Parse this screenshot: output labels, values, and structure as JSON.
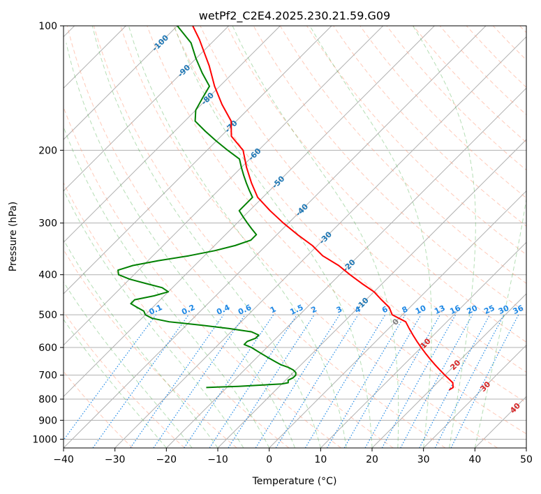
{
  "chart_data": {
    "type": "line",
    "title": "wetPf2_C2E4.2025.230.21.59.G09",
    "xlabel": "Temperature (°C)",
    "ylabel": "Pressure (hPa)",
    "xlim": [
      -40,
      50
    ],
    "ylim_pressure": [
      1050,
      100
    ],
    "y_scale": "log",
    "grid": true,
    "x_ticks": [
      -40,
      -30,
      -20,
      -10,
      0,
      10,
      20,
      30,
      40,
      50
    ],
    "x_tick_labels": [
      "−40",
      "−30",
      "−20",
      "−10",
      "0",
      "10",
      "20",
      "30",
      "40",
      "50"
    ],
    "y_ticks": [
      100,
      200,
      300,
      400,
      500,
      600,
      700,
      800,
      900,
      1000
    ],
    "y_tick_labels": [
      "100",
      "200",
      "300",
      "400",
      "500",
      "600",
      "700",
      "800",
      "900",
      "1000"
    ],
    "series": [
      {
        "role": "temperature",
        "color": "#ff0000",
        "pressure": [
          760,
          750,
          730,
          700,
          680,
          660,
          640,
          620,
          600,
          580,
          560,
          540,
          520,
          500,
          480,
          460,
          440,
          420,
          400,
          380,
          360,
          340,
          320,
          300,
          280,
          260,
          240,
          220,
          200,
          185,
          170,
          155,
          140,
          125,
          115,
          108,
          100
        ],
        "temperature": [
          23.7,
          24.0,
          23.0,
          20.0,
          18.0,
          16.0,
          14.0,
          12.0,
          10.0,
          8.0,
          6.0,
          4.0,
          2.0,
          -2.0,
          -4.0,
          -7.0,
          -10.0,
          -14.0,
          -18.0,
          -22.0,
          -27.0,
          -31.0,
          -36.0,
          -41.0,
          -46.0,
          -51.0,
          -55.0,
          -59.0,
          -63.0,
          -68.0,
          -71.0,
          -76.0,
          -81.0,
          -86.0,
          -90.0,
          -93.0,
          -97.0
        ]
      },
      {
        "role": "dewpoint",
        "color": "#008000",
        "pressure": [
          750,
          748,
          745,
          740,
          735,
          730,
          720,
          710,
          700,
          690,
          680,
          670,
          660,
          650,
          640,
          630,
          620,
          610,
          600,
          590,
          580,
          570,
          560,
          550,
          540,
          530,
          520,
          510,
          500,
          490,
          480,
          470,
          460,
          450,
          440,
          430,
          420,
          410,
          400,
          390,
          380,
          370,
          360,
          350,
          340,
          330,
          320,
          310,
          300,
          290,
          280,
          270,
          260,
          250,
          240,
          230,
          220,
          210,
          200,
          190,
          180,
          170,
          160,
          150,
          140,
          130,
          120,
          110,
          100
        ],
        "dewpoint": [
          -24.0,
          -22.0,
          -18.0,
          -14.0,
          -10.0,
          -9.0,
          -9.5,
          -9.0,
          -9.0,
          -9.5,
          -10.5,
          -12.0,
          -14.0,
          -15.5,
          -17.0,
          -18.5,
          -20.0,
          -21.5,
          -23.0,
          -25.0,
          -25.0,
          -24.0,
          -24.0,
          -26.0,
          -31.0,
          -37.0,
          -44.0,
          -48.0,
          -50.0,
          -51.0,
          -53.0,
          -55.0,
          -55.0,
          -52.0,
          -50.0,
          -52.0,
          -56.0,
          -60.0,
          -63.0,
          -64.0,
          -62.0,
          -58.0,
          -53.0,
          -49.0,
          -46.0,
          -44.0,
          -44.0,
          -46.0,
          -48.0,
          -50.0,
          -52.0,
          -52.0,
          -52.0,
          -54.0,
          -56.0,
          -58.0,
          -60.0,
          -62.0,
          -66.0,
          -70.0,
          -74.0,
          -78.0,
          -80.0,
          -81.0,
          -82.0,
          -86.0,
          -90.0,
          -94.0,
          -100.0
        ]
      }
    ],
    "isotherm_labels": [
      "-100",
      "-90",
      "-80",
      "-70",
      "-60",
      "-50",
      "-40",
      "-30",
      "-20",
      "-10",
      "0",
      "10",
      "20",
      "30",
      "40"
    ],
    "isotherm_label_values": [
      -100,
      -90,
      -80,
      -70,
      -60,
      -50,
      -40,
      -30,
      -20,
      -10,
      0,
      10,
      20,
      30,
      40
    ],
    "mixing_ratio_labels": [
      "0.1",
      "0.2",
      "0.4",
      "0.6",
      "1",
      "1.5",
      "2",
      "3",
      "4",
      "6",
      "8",
      "10",
      "13",
      "16",
      "20",
      "25",
      "30",
      "36"
    ],
    "mixing_ratio_values": [
      0.1,
      0.2,
      0.4,
      0.6,
      1,
      1.5,
      2,
      3,
      4,
      6,
      8,
      10,
      13,
      16,
      20,
      25,
      30,
      36
    ]
  }
}
